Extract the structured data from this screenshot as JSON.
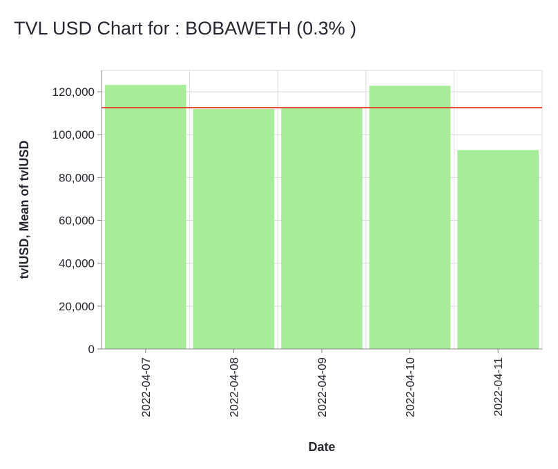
{
  "page": {
    "title": "TVL USD Chart for : BOBAWETH (0.3% )"
  },
  "chart_data": {
    "type": "bar",
    "categories": [
      "2022-04-07",
      "2022-04-08",
      "2022-04-09",
      "2022-04-10",
      "2022-04-11"
    ],
    "series": [
      {
        "values": [
          123200,
          112000,
          112300,
          122800,
          92800
        ]
      }
    ],
    "mean_rule": {
      "label": "Mean of tvlUSD",
      "value": 112600
    },
    "xlabel": "Date",
    "ylabel": "tvlUSD, Mean of tvlUSD",
    "ylim": [
      0,
      130000
    ],
    "yticks": [
      0,
      20000,
      40000,
      60000,
      80000,
      100000,
      120000
    ],
    "grid": true,
    "legend": "none",
    "colors": {
      "bar": "#a6ec99",
      "rule": "#e3412f",
      "grid": "#dcdcdc",
      "axis": "#888888"
    }
  }
}
